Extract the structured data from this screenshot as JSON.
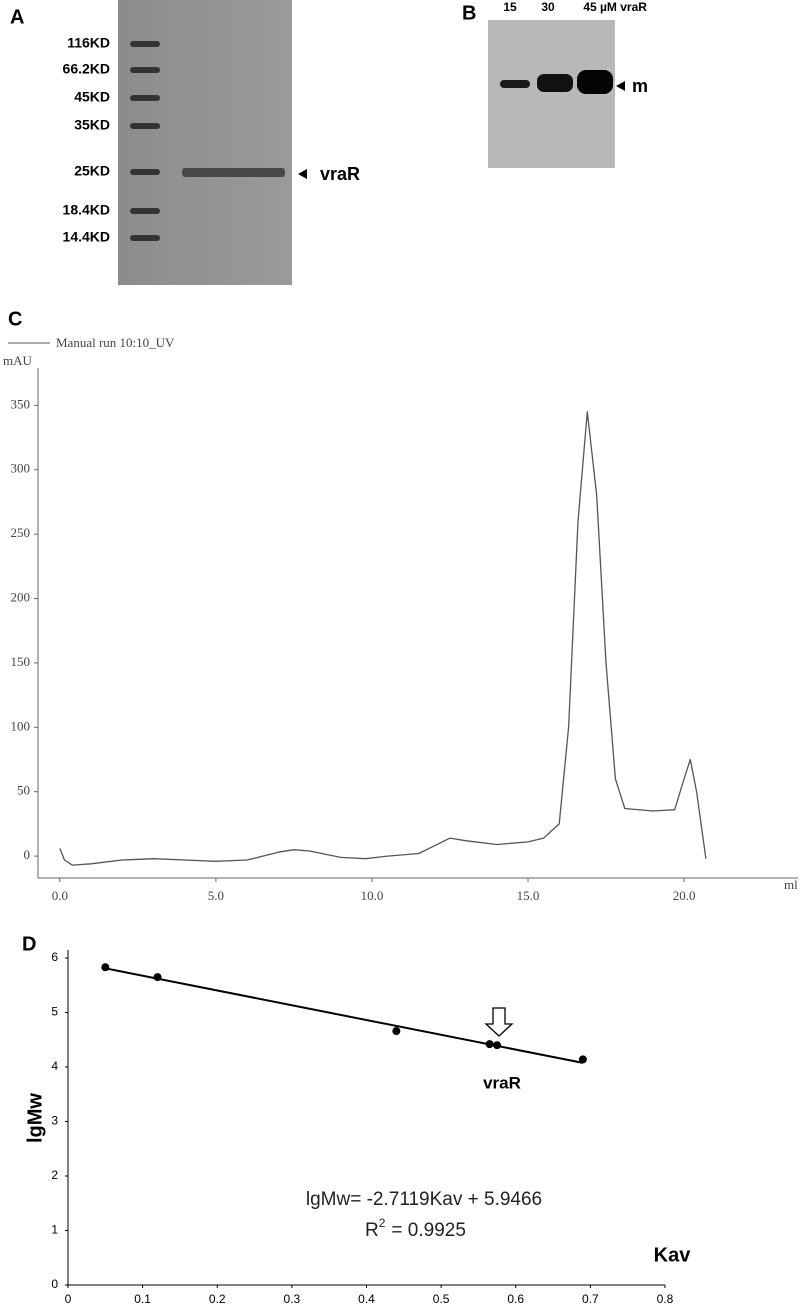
{
  "panel_a": {
    "label": "A",
    "markers": [
      "116KD",
      "66.2KD",
      "45KD",
      "35KD",
      "25KD",
      "18.4KD",
      "14.4KD"
    ],
    "band_label": "vraR"
  },
  "panel_b": {
    "label": "B",
    "lanes": [
      "15",
      "30",
      "45"
    ],
    "unit": "µM vraR",
    "band_label": "m"
  },
  "chart_data": [
    {
      "type": "line",
      "panel_label": "C",
      "ylabel": "mAU",
      "xlabel": "ml",
      "x": [
        0,
        0.15,
        0.4,
        1,
        2,
        3,
        4,
        5,
        6,
        7,
        7.5,
        8,
        9,
        9.8,
        10.5,
        11.5,
        12,
        12.5,
        13,
        14,
        15,
        15.5,
        16,
        16.3,
        16.6,
        16.9,
        17.2,
        17.5,
        17.8,
        18.1,
        19,
        19.7,
        20,
        20.2,
        20.4,
        20.7
      ],
      "series": [
        {
          "name": "Manual run 10:10_UV",
          "color": "#555555",
          "values": [
            6,
            -3,
            -7,
            -6,
            -3,
            -2,
            -3,
            -4,
            -3,
            3,
            5,
            4,
            -1,
            -2,
            0,
            2,
            8,
            14,
            12,
            9,
            11,
            14,
            25,
            100,
            260,
            345,
            280,
            150,
            60,
            37,
            35,
            36,
            60,
            75,
            50,
            -2
          ]
        }
      ],
      "xlim": [
        -0.7,
        23.65
      ],
      "ylim": [
        -17,
        379
      ],
      "xticks": [
        {
          "value": 0,
          "label": "0.0"
        },
        {
          "value": 5,
          "label": "5.0"
        },
        {
          "value": 10,
          "label": "10.0"
        },
        {
          "value": 15,
          "label": "15.0"
        },
        {
          "value": 20,
          "label": "20.0"
        }
      ],
      "yticks": [
        0,
        50,
        100,
        150,
        200,
        250,
        300,
        350
      ]
    },
    {
      "type": "scatter",
      "panel_label": "D",
      "ylabel": "lgMw",
      "xlabel": "Kav",
      "x": [
        0.05,
        0.12,
        0.44,
        0.565,
        0.575,
        0.69
      ],
      "series": [
        {
          "color": "#000000",
          "values": [
            5.83,
            5.65,
            4.66,
            4.42,
            4.4,
            4.14
          ]
        }
      ],
      "trendline": {
        "slope": -2.7119,
        "intercept": 5.9466
      },
      "equation": "lgMw= -2.7119Kav + 5.9466",
      "r2_label": "R",
      "r2_sup": "2",
      "r2_value": "= 0.9925",
      "annotation": "vraR",
      "xlim": [
        0,
        0.8
      ],
      "ylim": [
        0,
        6
      ],
      "xticks": [
        0,
        0.1,
        0.2,
        0.3,
        0.4,
        0.5,
        0.6,
        0.7,
        0.8
      ],
      "yticks": [
        0,
        1,
        2,
        3,
        4,
        5,
        6
      ]
    }
  ]
}
